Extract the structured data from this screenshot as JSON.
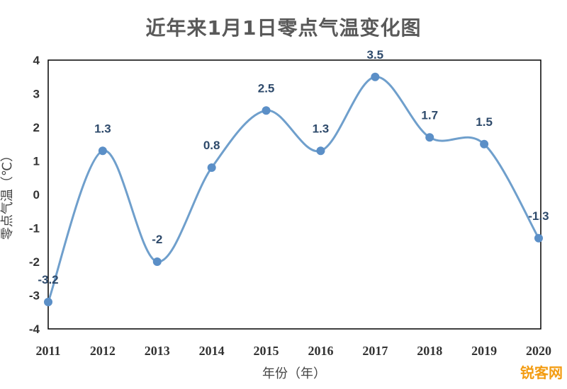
{
  "chart_data": {
    "type": "line",
    "title": "近年来1月1日零点气温变化图",
    "xlabel": "年份（年）",
    "ylabel": "零点气温（℃）",
    "categories": [
      "2011",
      "2012",
      "2013",
      "2014",
      "2015",
      "2016",
      "2017",
      "2018",
      "2019",
      "2020"
    ],
    "series": [
      {
        "values": [
          -3.2,
          1.3,
          -2,
          0.8,
          2.5,
          1.3,
          3.5,
          1.7,
          1.5,
          -1.3
        ]
      }
    ],
    "data_labels": [
      "-3.2",
      "1.3",
      "-2",
      "0.8",
      "2.5",
      "1.3",
      "3.5",
      "1.7",
      "1.5",
      "-1.3"
    ],
    "y_ticks": [
      "4",
      "3",
      "2",
      "1",
      "0",
      "-1",
      "-2",
      "-3",
      "-4"
    ],
    "ylim": [
      -4,
      4
    ],
    "grid": false,
    "smooth": true,
    "colors": {
      "line": "#6f9fcc",
      "marker": "#5b8fc7",
      "axis": "#000000"
    }
  },
  "watermark": "锐客网"
}
